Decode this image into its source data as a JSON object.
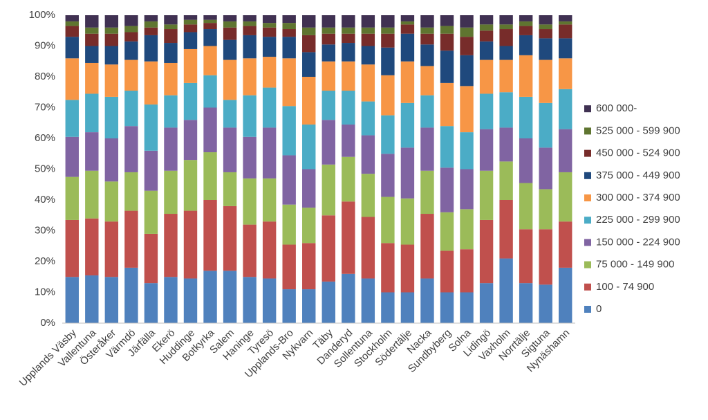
{
  "chart_data": {
    "type": "stacked_bar_percent",
    "categories": [
      "Upplands Väsby",
      "Vallentuna",
      "Österåker",
      "Värmdö",
      "Järfälla",
      "Ekerö",
      "Huddinge",
      "Botkyrka",
      "Salem",
      "Haninge",
      "Tyresö",
      "Upplands-Bro",
      "Nykvarn",
      "Täby",
      "Danderyd",
      "Sollentuna",
      "Stockholm",
      "Södertälje",
      "Nacka",
      "Sundbyberg",
      "Solna",
      "Lidingö",
      "Vaxholm",
      "Norrtälje",
      "Sigtuna",
      "Nynäshamn"
    ],
    "series": [
      {
        "name": "0",
        "color": "#4f81bd",
        "values": [
          15,
          15.5,
          15,
          18,
          13,
          15,
          14.5,
          17,
          17,
          15,
          14.5,
          11,
          11,
          13.5,
          16,
          14.5,
          10,
          10,
          14.5,
          10,
          10,
          13,
          21,
          13,
          12.5,
          18
        ]
      },
      {
        "name": "100 - 74 900",
        "color": "#c0504d",
        "values": [
          18.5,
          18.5,
          18,
          18.5,
          16,
          20.5,
          22,
          23,
          21,
          17,
          18.5,
          14.5,
          15,
          21.5,
          23.5,
          20,
          16,
          15.5,
          21,
          13.5,
          14,
          20.5,
          19,
          17.5,
          18,
          15
        ]
      },
      {
        "name": "75 000 - 149 900",
        "color": "#9bbb59",
        "values": [
          14,
          15.5,
          13,
          12.5,
          14,
          14,
          16.5,
          15.5,
          11,
          15,
          14,
          13,
          11.5,
          16.5,
          14.5,
          14,
          15,
          15,
          14,
          12.5,
          13,
          16,
          12.5,
          15,
          13,
          16
        ]
      },
      {
        "name": "150 000 - 224 900",
        "color": "#8064a2",
        "values": [
          13,
          12.5,
          14,
          15,
          13,
          14,
          13,
          14.5,
          14.5,
          13.5,
          16.5,
          16,
          12.5,
          14.5,
          10.5,
          12.5,
          14,
          16.5,
          14,
          14.5,
          13,
          13.5,
          11,
          14.5,
          13.5,
          14
        ]
      },
      {
        "name": "225 000 - 299 900",
        "color": "#4bacc6",
        "values": [
          12,
          12.5,
          13.5,
          11.5,
          15,
          10.5,
          12,
          10.5,
          9,
          13.5,
          13,
          16,
          14.5,
          9.5,
          11,
          11,
          12.5,
          14.5,
          10.5,
          13.5,
          12,
          11.5,
          11.5,
          13.5,
          14.5,
          13
        ]
      },
      {
        "name": "300 000 - 374 900",
        "color": "#f79646",
        "values": [
          13.5,
          10,
          10.5,
          10,
          14,
          10.5,
          11,
          9.5,
          13,
          12,
          10,
          15.5,
          15.5,
          9.5,
          9.5,
          12,
          13,
          13.5,
          9.5,
          14,
          15,
          11,
          10.5,
          13.5,
          14,
          10
        ]
      },
      {
        "name": "375 000 - 449 900",
        "color": "#1f497d",
        "values": [
          7,
          5.5,
          6,
          6,
          8.5,
          6.5,
          5.5,
          5.5,
          6.5,
          7.5,
          6.5,
          7,
          8,
          5.5,
          6,
          6,
          9,
          9,
          7,
          10.5,
          10,
          6,
          4.5,
          6.5,
          7,
          6.5
        ]
      },
      {
        "name": "450 000 - 524 900",
        "color": "#772c2a",
        "values": [
          3.5,
          4,
          4,
          3,
          2.5,
          4.5,
          2.5,
          2,
          4,
          3,
          3,
          2.5,
          5.5,
          3.5,
          3,
          4,
          4.5,
          3,
          3.5,
          5.5,
          6,
          3.5,
          5.5,
          3,
          3,
          4.5
        ]
      },
      {
        "name": "525 000 - 599 900",
        "color": "#5f7530",
        "values": [
          1.5,
          2,
          2,
          2,
          2,
          1.5,
          1.5,
          1,
          2,
          1.5,
          1.5,
          2,
          2.5,
          2,
          2,
          2,
          2,
          1,
          2,
          2.5,
          3,
          2,
          1.5,
          1.5,
          1.5,
          1
        ]
      },
      {
        "name": "600 000-",
        "color": "#403152",
        "values": [
          2,
          4,
          4,
          3.5,
          2,
          3,
          1.5,
          1.5,
          2,
          2,
          2.5,
          2.5,
          4,
          4,
          4,
          4,
          4,
          2,
          4,
          3.5,
          4,
          3,
          3,
          2,
          3,
          2
        ]
      }
    ],
    "ylim": [
      0,
      100
    ],
    "yticks": [
      {
        "value": 0,
        "label": "0%"
      },
      {
        "value": 10,
        "label": "10%"
      },
      {
        "value": 20,
        "label": "20%"
      },
      {
        "value": 30,
        "label": "30%"
      },
      {
        "value": 40,
        "label": "40%"
      },
      {
        "value": 50,
        "label": "50%"
      },
      {
        "value": 60,
        "label": "60%"
      },
      {
        "value": 70,
        "label": "70%"
      },
      {
        "value": 80,
        "label": "80%"
      },
      {
        "value": 90,
        "label": "90%"
      },
      {
        "value": 100,
        "label": "100%"
      }
    ],
    "grid": false,
    "legend": "right"
  }
}
